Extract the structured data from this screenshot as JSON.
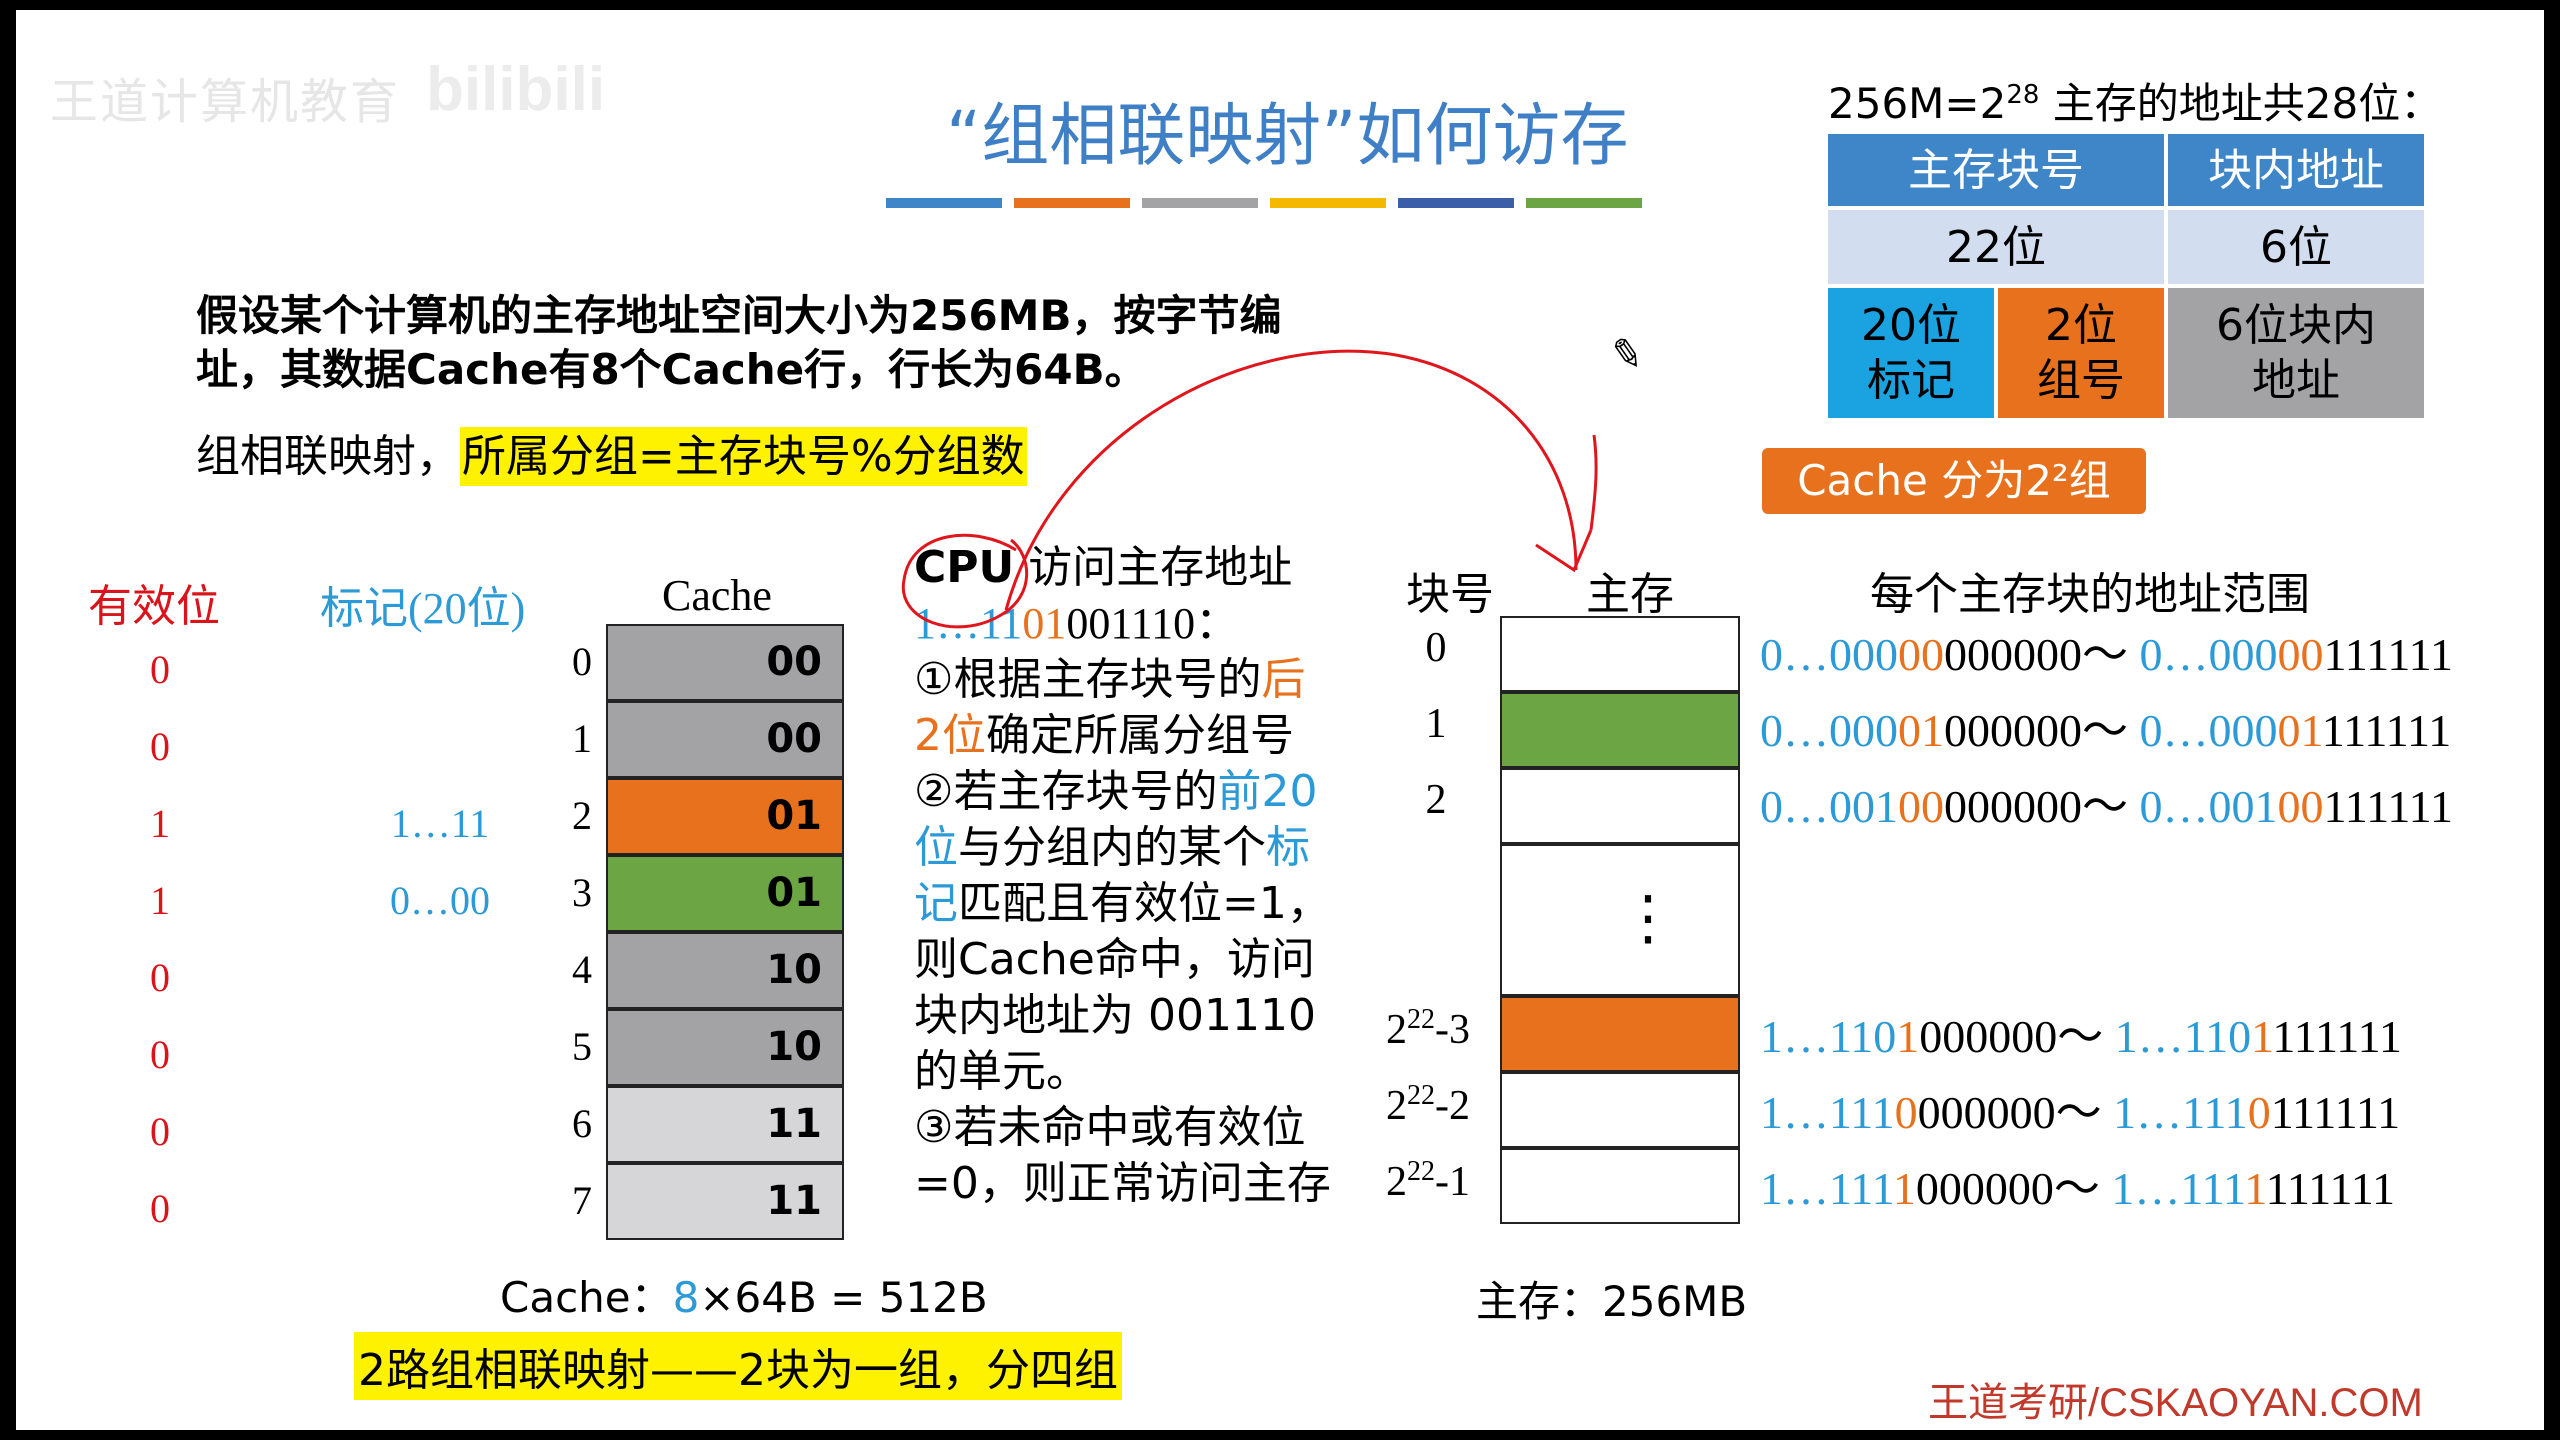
{
  "watermark": "王道计算机教育",
  "title": "“组相联映射”如何访存",
  "colors": {
    "title": "#3f7fc5",
    "grey": "#a3a3a5",
    "orange": "#e8711d",
    "green": "#6ca544",
    "light": "#d6d6d8",
    "red": "#d9141b",
    "blue": "#2c9ad6"
  },
  "intro": {
    "line1": "假设某个计算机的主存地址空间大小为256MB，按字节编",
    "line2": "址，其数据Cache有8个Cache行，行长为64B。"
  },
  "rule": {
    "prefix": "组相联映射，",
    "formula": "所属分组=主存块号%分组数"
  },
  "address_info": {
    "heading_a": "256M=2",
    "heading_exp": "28",
    "heading_b": " 主存的地址共28位：",
    "header_block": "主存块号",
    "header_offset": "块内地址",
    "bits_block": "22位",
    "bits_offset": "6位",
    "tag_bits": "20位\n标记",
    "group_bits": "2位\n组号",
    "offset_bits": "6位块内\n地址",
    "groups_callout": "Cache 分为2²组"
  },
  "cache_headers": {
    "valid": "有效位",
    "tag": "标记(20位)",
    "cache": "Cache"
  },
  "cache_rows": [
    {
      "valid": "0",
      "tag": "",
      "index": "0",
      "group": "00"
    },
    {
      "valid": "0",
      "tag": "",
      "index": "1",
      "group": "00"
    },
    {
      "valid": "1",
      "tag": "1…11",
      "index": "2",
      "group": "01"
    },
    {
      "valid": "1",
      "tag": "0…00",
      "index": "3",
      "group": "01"
    },
    {
      "valid": "0",
      "tag": "",
      "index": "4",
      "group": "10"
    },
    {
      "valid": "0",
      "tag": "",
      "index": "5",
      "group": "10"
    },
    {
      "valid": "0",
      "tag": "",
      "index": "6",
      "group": "11"
    },
    {
      "valid": "0",
      "tag": "",
      "index": "7",
      "group": "11"
    }
  ],
  "cache_size": {
    "label": "Cache：",
    "count": "8",
    "rest": "×64B = 512B"
  },
  "two_way_note": "2路组相联映射——2块为一组，分四组",
  "cpu": {
    "title_a": "CPU",
    "title_b": " 访问主存地址",
    "addr_a": "1…11",
    "addr_b": "01",
    "addr_c": "001110：",
    "s1_a": "①根据主存块号的",
    "s1_b": "后",
    "s1_c": "2位",
    "s1_d": "确定所属分组号",
    "s2_a": "②若主存块号的",
    "s2_b": "前20",
    "s2_c": "位",
    "s2_d": "与分组内的某个",
    "s2_e": "标",
    "s2_f": "记",
    "s2_g": "匹配且有效位=1，",
    "s2_h": "则Cache命中，访问",
    "s2_i": "块内地址为 001110",
    "s2_j": "的单元。",
    "s3_a": "③若未命中或有效位",
    "s3_b": "=0，则正常访问主存"
  },
  "memory": {
    "block_header": "块号",
    "mem_header": "主存",
    "range_header": "每个主存块的地址范围",
    "vdots": "⋮",
    "blocks": [
      {
        "label_base": "0",
        "label_exp": "",
        "label_tail": ""
      },
      {
        "label_base": "1",
        "label_exp": "",
        "label_tail": ""
      },
      {
        "label_base": "2",
        "label_exp": "",
        "label_tail": ""
      },
      {
        "label_base": "2",
        "label_exp": "22",
        "label_tail": "-3"
      },
      {
        "label_base": "2",
        "label_exp": "22",
        "label_tail": "-2"
      },
      {
        "label_base": "2",
        "label_exp": "22",
        "label_tail": "-1"
      }
    ],
    "size_label": "主存：256MB"
  },
  "ranges": [
    {
      "a1": "0…000",
      "a2": "00",
      "a3": "000000",
      "sep": "～ ",
      "b1": "0…000",
      "b2": "00",
      "b3": "111111"
    },
    {
      "a1": "0…000",
      "a2": "01",
      "a3": "000000",
      "sep": "～ ",
      "b1": "0…000",
      "b2": "01",
      "b3": "111111"
    },
    {
      "a1": "0…001",
      "a2": "00",
      "a3": "000000",
      "sep": "～ ",
      "b1": "0…001",
      "b2": "00",
      "b3": "111111"
    },
    {
      "a1": "1…110",
      "a2": "1",
      "a3": "000000",
      "sep": "～ ",
      "b1": "1…110",
      "b2": "1",
      "b3": "111111"
    },
    {
      "a1": "1…111",
      "a2": "0",
      "a3": "000000",
      "sep": "～ ",
      "b1": "1…111",
      "b2": "0",
      "b3": "111111"
    },
    {
      "a1": "1…111",
      "a2": "1",
      "a3": "000000",
      "sep": "～ ",
      "b1": "1…111",
      "b2": "1",
      "b3": "111111"
    }
  ],
  "footer": "王道考研/CSKAOYAN.COM"
}
